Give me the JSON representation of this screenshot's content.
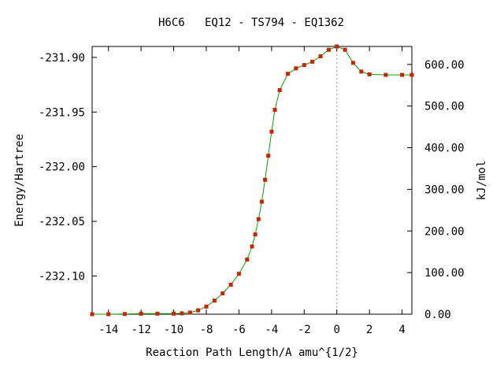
{
  "chart_data": {
    "type": "line",
    "title": "H6C6   EQ12 - TS794 - EQ1362",
    "xlabel": "Reaction Path Length/A amu^{1/2}",
    "ylabel": "Energy/Hartree",
    "y2label": "kJ/mol",
    "xlim": [
      -15.0,
      4.6
    ],
    "ylim": [
      -232.135,
      -231.89
    ],
    "y2lim": [
      0.0,
      643.2
    ],
    "xticks": [
      "-14",
      "-12",
      "-10",
      "-8",
      "-6",
      "-4",
      "-2",
      "0",
      "2",
      "4"
    ],
    "xtick_values": [
      -14,
      -12,
      -10,
      -8,
      -6,
      -4,
      -2,
      0,
      2,
      4
    ],
    "yticks": [
      "-231.90",
      "-231.95",
      "-232.00",
      "-232.05",
      "-232.10"
    ],
    "ytick_values": [
      -231.9,
      -231.95,
      -232.0,
      -232.05,
      -232.1
    ],
    "y2ticks": [
      "600.00",
      "500.00",
      "400.00",
      "300.00",
      "200.00",
      "100.00",
      "0.00"
    ],
    "y2tick_values": [
      600,
      500,
      400,
      300,
      200,
      100,
      0
    ],
    "reference_line_x": 0,
    "grid": false,
    "series": [
      {
        "line_color": "#00aa00",
        "marker_color": "#cc2200",
        "x": [
          -15.0,
          -14.0,
          -13.0,
          -12.0,
          -11.0,
          -10.0,
          -9.5,
          -9.0,
          -8.5,
          -8.0,
          -7.5,
          -7.0,
          -6.5,
          -6.0,
          -5.5,
          -5.2,
          -5.0,
          -4.8,
          -4.6,
          -4.4,
          -4.2,
          -4.0,
          -3.8,
          -3.5,
          -3.0,
          -2.5,
          -2.0,
          -1.5,
          -1.0,
          -0.5,
          0.0,
          0.5,
          1.0,
          1.5,
          2.0,
          3.0,
          4.0,
          4.6
        ],
        "y": [
          -232.135,
          -232.135,
          -232.1348,
          -232.1345,
          -232.1345,
          -232.1345,
          -232.1342,
          -232.1335,
          -232.1315,
          -232.128,
          -232.1225,
          -232.116,
          -232.108,
          -232.098,
          -232.085,
          -232.073,
          -232.062,
          -232.048,
          -232.032,
          -232.012,
          -231.99,
          -231.968,
          -231.948,
          -231.93,
          -231.915,
          -231.91,
          -231.907,
          -231.904,
          -231.899,
          -231.893,
          -231.89,
          -231.893,
          -231.905,
          -231.913,
          -231.9155,
          -231.916,
          -231.916,
          -231.916
        ]
      }
    ]
  }
}
